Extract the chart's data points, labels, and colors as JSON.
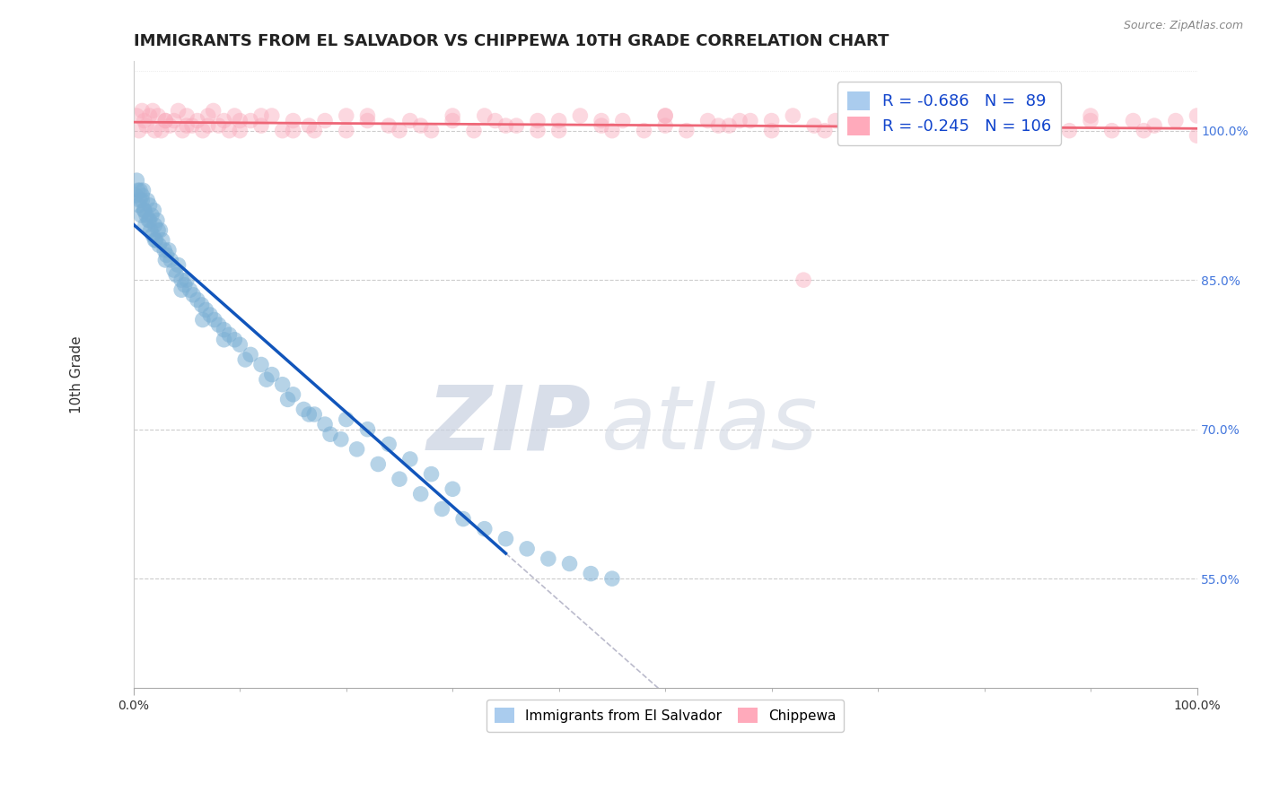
{
  "title": "IMMIGRANTS FROM EL SALVADOR VS CHIPPEWA 10TH GRADE CORRELATION CHART",
  "source": "Source: ZipAtlas.com",
  "xlabel_blue": "Immigrants from El Salvador",
  "xlabel_pink": "Chippewa",
  "ylabel": "10th Grade",
  "blue_R": -0.686,
  "blue_N": 89,
  "pink_R": -0.245,
  "pink_N": 106,
  "blue_color": "#7BAFD4",
  "blue_edge_color": "#5599CC",
  "pink_color": "#F9AABB",
  "pink_edge_color": "#EE88AA",
  "blue_line_color": "#1155BB",
  "pink_line_color": "#EE6677",
  "dash_line_color": "#BBBBCC",
  "background_color": "#FFFFFF",
  "title_fontsize": 13,
  "axis_label_fontsize": 11,
  "tick_fontsize": 10,
  "legend_fontsize": 13,
  "xlim_min": 0.0,
  "xlim_max": 100.0,
  "ylim_min": 44.0,
  "ylim_max": 107.0,
  "ytick_vals": [
    55.0,
    70.0,
    85.0,
    100.0
  ],
  "ytick_labels": [
    "55.0%",
    "70.0%",
    "85.0%",
    "100.0%"
  ],
  "blue_x": [
    0.2,
    0.3,
    0.4,
    0.5,
    0.6,
    0.7,
    0.8,
    0.9,
    1.0,
    1.1,
    1.2,
    1.3,
    1.4,
    1.5,
    1.6,
    1.7,
    1.8,
    1.9,
    2.0,
    2.1,
    2.2,
    2.3,
    2.4,
    2.5,
    2.7,
    2.9,
    3.1,
    3.3,
    3.5,
    3.8,
    4.0,
    4.2,
    4.5,
    4.8,
    5.0,
    5.3,
    5.6,
    6.0,
    6.4,
    6.8,
    7.2,
    7.6,
    8.0,
    8.5,
    9.0,
    9.5,
    10.0,
    11.0,
    12.0,
    13.0,
    14.0,
    15.0,
    16.0,
    17.0,
    18.0,
    19.5,
    21.0,
    23.0,
    25.0,
    27.0,
    29.0,
    31.0,
    33.0,
    30.0,
    28.0,
    26.0,
    24.0,
    22.0,
    20.0,
    18.5,
    16.5,
    14.5,
    12.5,
    10.5,
    8.5,
    6.5,
    4.5,
    3.0,
    2.0,
    1.5,
    1.0,
    0.8,
    0.6,
    35.0,
    37.0,
    39.0,
    41.0,
    43.0,
    45.0
  ],
  "blue_y": [
    93.5,
    95.0,
    94.0,
    92.5,
    93.0,
    91.5,
    93.0,
    94.0,
    92.0,
    90.5,
    91.5,
    93.0,
    91.0,
    92.5,
    90.0,
    91.5,
    89.5,
    92.0,
    90.5,
    89.0,
    91.0,
    90.0,
    88.5,
    90.0,
    89.0,
    88.0,
    87.5,
    88.0,
    87.0,
    86.0,
    85.5,
    86.5,
    85.0,
    84.5,
    85.0,
    84.0,
    83.5,
    83.0,
    82.5,
    82.0,
    81.5,
    81.0,
    80.5,
    80.0,
    79.5,
    79.0,
    78.5,
    77.5,
    76.5,
    75.5,
    74.5,
    73.5,
    72.0,
    71.5,
    70.5,
    69.0,
    68.0,
    66.5,
    65.0,
    63.5,
    62.0,
    61.0,
    60.0,
    64.0,
    65.5,
    67.0,
    68.5,
    70.0,
    71.0,
    69.5,
    71.5,
    73.0,
    75.0,
    77.0,
    79.0,
    81.0,
    84.0,
    87.0,
    89.0,
    91.0,
    92.0,
    93.5,
    94.0,
    59.0,
    58.0,
    57.0,
    56.5,
    55.5,
    55.0
  ],
  "pink_x": [
    0.3,
    0.5,
    0.8,
    1.0,
    1.2,
    1.5,
    1.8,
    2.0,
    2.3,
    2.6,
    3.0,
    3.4,
    3.8,
    4.2,
    4.6,
    5.0,
    5.5,
    6.0,
    6.5,
    7.0,
    7.5,
    8.0,
    8.5,
    9.0,
    9.5,
    10.0,
    11.0,
    12.0,
    13.0,
    14.0,
    15.0,
    16.5,
    18.0,
    20.0,
    22.0,
    24.0,
    26.0,
    28.0,
    30.0,
    32.0,
    34.0,
    36.0,
    38.0,
    40.0,
    42.0,
    44.0,
    46.0,
    48.0,
    50.0,
    52.0,
    54.0,
    56.0,
    58.0,
    60.0,
    62.0,
    64.0,
    66.0,
    68.0,
    70.0,
    72.0,
    74.0,
    76.0,
    78.0,
    80.0,
    82.0,
    84.0,
    86.0,
    88.0,
    90.0,
    92.0,
    94.0,
    96.0,
    98.0,
    100.0,
    5.0,
    10.0,
    15.0,
    20.0,
    25.0,
    30.0,
    35.0,
    40.0,
    45.0,
    50.0,
    55.0,
    60.0,
    65.0,
    70.0,
    75.0,
    80.0,
    85.0,
    90.0,
    95.0,
    100.0,
    3.0,
    7.0,
    12.0,
    17.0,
    22.0,
    27.0,
    33.0,
    38.0,
    44.0,
    50.0,
    57.0,
    63.0
  ],
  "pink_y": [
    101.5,
    100.0,
    102.0,
    101.0,
    100.5,
    101.5,
    102.0,
    100.0,
    101.5,
    100.0,
    101.0,
    100.5,
    101.0,
    102.0,
    100.0,
    101.5,
    100.5,
    101.0,
    100.0,
    101.5,
    102.0,
    100.5,
    101.0,
    100.0,
    101.5,
    100.0,
    101.0,
    100.5,
    101.5,
    100.0,
    101.0,
    100.5,
    101.0,
    100.0,
    101.5,
    100.5,
    101.0,
    100.0,
    101.5,
    100.0,
    101.0,
    100.5,
    101.0,
    100.0,
    101.5,
    100.5,
    101.0,
    100.0,
    101.5,
    100.0,
    101.0,
    100.5,
    101.0,
    100.0,
    101.5,
    100.5,
    101.0,
    100.0,
    101.5,
    100.0,
    101.0,
    100.5,
    101.0,
    100.0,
    101.5,
    100.5,
    101.0,
    100.0,
    101.5,
    100.0,
    101.0,
    100.5,
    101.0,
    99.5,
    100.5,
    101.0,
    100.0,
    101.5,
    100.0,
    101.0,
    100.5,
    101.0,
    100.0,
    101.5,
    100.5,
    101.0,
    100.0,
    101.5,
    100.0,
    101.0,
    100.5,
    101.0,
    100.0,
    101.5,
    101.0,
    100.5,
    101.5,
    100.0,
    101.0,
    100.5,
    101.5,
    100.0,
    101.0,
    100.5,
    101.0,
    85.0
  ]
}
